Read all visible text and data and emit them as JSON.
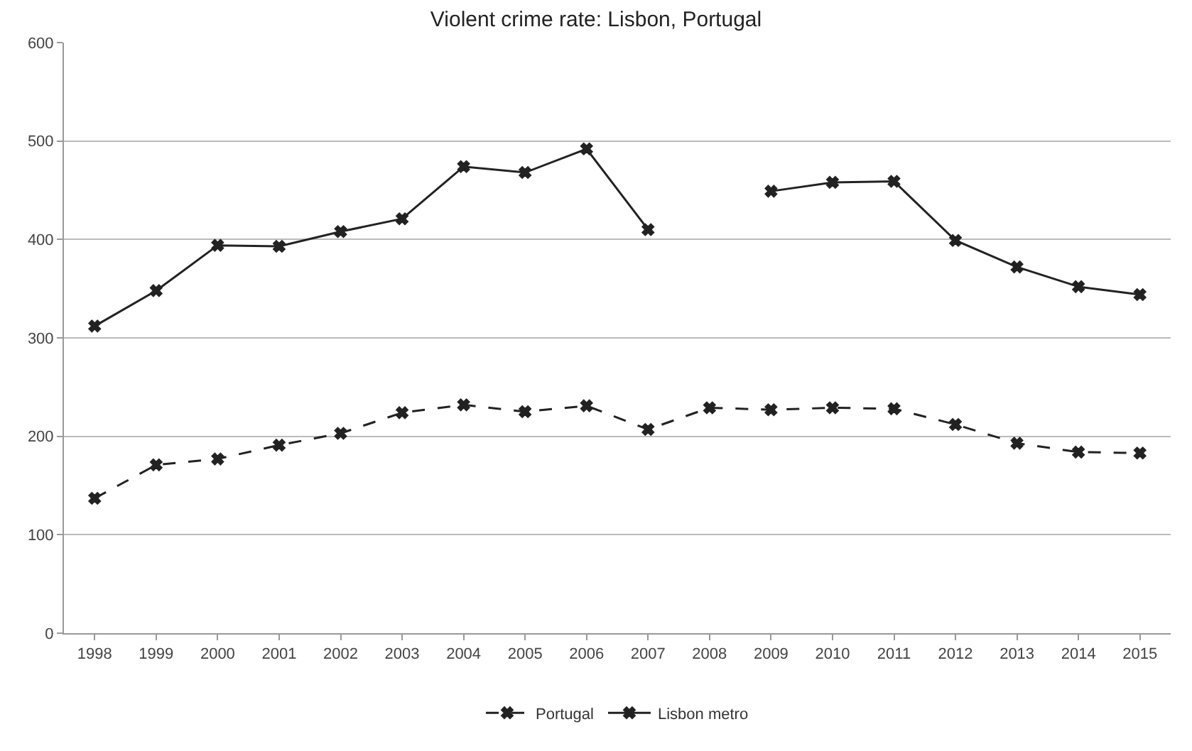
{
  "chart_data": {
    "type": "line",
    "title": "Violent crime rate: Lisbon, Portugal",
    "categories": [
      "1998",
      "1999",
      "2000",
      "2001",
      "2002",
      "2003",
      "2004",
      "2005",
      "2006",
      "2007",
      "2008",
      "2009",
      "2010",
      "2011",
      "2012",
      "2013",
      "2014",
      "2015"
    ],
    "series": [
      {
        "name": "Portugal",
        "color": "#222222",
        "line_style": "dashed",
        "values": [
          137,
          171,
          177,
          191,
          203,
          224,
          232,
          225,
          231,
          207,
          229,
          227,
          229,
          228,
          212,
          193,
          184,
          183
        ]
      },
      {
        "name": "Lisbon metro",
        "color": "#222222",
        "line_style": "solid",
        "values": [
          312,
          348,
          394,
          393,
          408,
          421,
          474,
          468,
          492,
          410,
          null,
          449,
          458,
          459,
          399,
          372,
          352,
          344
        ]
      }
    ],
    "ylim": [
      0,
      600
    ],
    "yticks": [
      0,
      100,
      200,
      300,
      400,
      500,
      600
    ],
    "grid": "y",
    "legend": "bottom",
    "marker": "cross"
  }
}
